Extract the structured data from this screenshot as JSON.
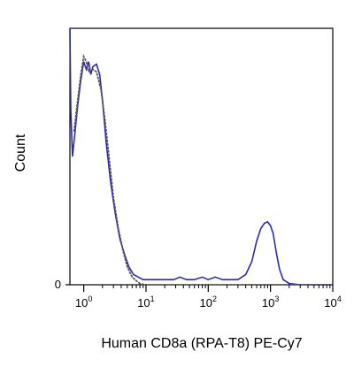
{
  "chart_data": {
    "type": "line",
    "title": "",
    "xlabel": "Human CD8a (RPA-T8) PE-Cy7",
    "ylabel": "Count",
    "x_scale": "log",
    "xlim": [
      0.6,
      10000
    ],
    "ylim": [
      0,
      100
    ],
    "x_ticks": [
      {
        "base": "10",
        "exp": "0",
        "value": 1
      },
      {
        "base": "10",
        "exp": "1",
        "value": 10
      },
      {
        "base": "10",
        "exp": "2",
        "value": 100
      },
      {
        "base": "10",
        "exp": "3",
        "value": 1000
      },
      {
        "base": "10",
        "exp": "4",
        "value": 10000
      }
    ],
    "y_ticks": [
      {
        "label": "0",
        "value": 0
      }
    ],
    "grid": false,
    "legend": "none",
    "series": [
      {
        "style": "solid",
        "color": "#2a2ab8",
        "points": [
          [
            0.6,
            100
          ],
          [
            0.62,
            68
          ],
          [
            0.66,
            50
          ],
          [
            0.72,
            59
          ],
          [
            0.8,
            70
          ],
          [
            0.9,
            80
          ],
          [
            1.0,
            87
          ],
          [
            1.1,
            84
          ],
          [
            1.2,
            87
          ],
          [
            1.3,
            82
          ],
          [
            1.4,
            85
          ],
          [
            1.6,
            86
          ],
          [
            1.8,
            82
          ],
          [
            2.0,
            72
          ],
          [
            2.3,
            55
          ],
          [
            2.7,
            40
          ],
          [
            3.2,
            28
          ],
          [
            3.8,
            18
          ],
          [
            4.5,
            12
          ],
          [
            5.3,
            7
          ],
          [
            6.3,
            4
          ],
          [
            7.5,
            3
          ],
          [
            9.0,
            2
          ],
          [
            11,
            2
          ],
          [
            15,
            2
          ],
          [
            20,
            2
          ],
          [
            28,
            2
          ],
          [
            35,
            3
          ],
          [
            45,
            2
          ],
          [
            60,
            2
          ],
          [
            80,
            3
          ],
          [
            100,
            2
          ],
          [
            130,
            3
          ],
          [
            170,
            2
          ],
          [
            230,
            2
          ],
          [
            300,
            2
          ],
          [
            400,
            4
          ],
          [
            500,
            9
          ],
          [
            600,
            17
          ],
          [
            700,
            22
          ],
          [
            800,
            24
          ],
          [
            900,
            24.5
          ],
          [
            1000,
            23
          ],
          [
            1100,
            20
          ],
          [
            1250,
            12
          ],
          [
            1400,
            6
          ],
          [
            1600,
            2
          ],
          [
            2000,
            0.5
          ],
          [
            3000,
            0
          ],
          [
            10000,
            0
          ]
        ]
      },
      {
        "style": "dotted",
        "color": "#555555",
        "points": [
          [
            0.7,
            60
          ],
          [
            0.8,
            72
          ],
          [
            0.9,
            82
          ],
          [
            1.0,
            89
          ],
          [
            1.1,
            87
          ],
          [
            1.2,
            83
          ],
          [
            1.4,
            84
          ],
          [
            1.6,
            83
          ],
          [
            1.9,
            76
          ],
          [
            2.2,
            64
          ],
          [
            2.6,
            48
          ],
          [
            3.0,
            34
          ],
          [
            3.6,
            22
          ],
          [
            4.3,
            13
          ],
          [
            5.0,
            7
          ],
          [
            6.0,
            3
          ],
          [
            7.0,
            1.5
          ],
          [
            8.0,
            0.5
          ],
          [
            9.5,
            0
          ],
          [
            10000,
            0
          ]
        ]
      }
    ]
  }
}
